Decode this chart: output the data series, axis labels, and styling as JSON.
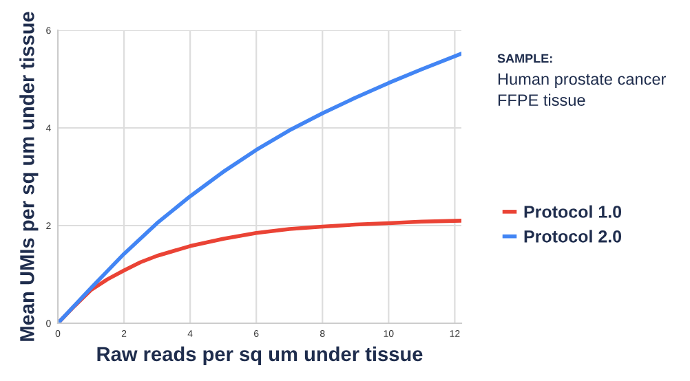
{
  "chart_data": {
    "type": "line",
    "xlabel": "Raw reads per sq um under tissue",
    "ylabel": "Mean UMIs per sq um under tissue",
    "xlim": [
      0,
      12.2
    ],
    "xticks": [
      0,
      2,
      4,
      6,
      8,
      10,
      12
    ],
    "ylim": [
      0,
      6
    ],
    "yticks": [
      0,
      2,
      4,
      6
    ],
    "grid": true,
    "legend": "right",
    "marker": "none",
    "line_style": "solid",
    "annotations": [
      "SAMPLE:",
      "Human prostate cancer\nFFPE tissue"
    ],
    "series": [
      {
        "name": "Protocol 1.0",
        "color": "#ea4335",
        "x": [
          0,
          0.5,
          1,
          1.5,
          2,
          2.5,
          3,
          4,
          5,
          6,
          7,
          8,
          9,
          10,
          11,
          12.2
        ],
        "values": [
          0,
          0.35,
          0.68,
          0.9,
          1.08,
          1.25,
          1.38,
          1.58,
          1.73,
          1.85,
          1.93,
          1.98,
          2.02,
          2.05,
          2.08,
          2.1
        ]
      },
      {
        "name": "Protocol 2.0",
        "color": "#4285f4",
        "x": [
          0,
          1,
          2,
          3,
          4,
          5,
          6,
          7,
          8,
          9,
          10,
          11,
          12.2
        ],
        "values": [
          0,
          0.72,
          1.42,
          2.05,
          2.6,
          3.1,
          3.55,
          3.95,
          4.3,
          4.62,
          4.92,
          5.2,
          5.52
        ]
      }
    ]
  }
}
